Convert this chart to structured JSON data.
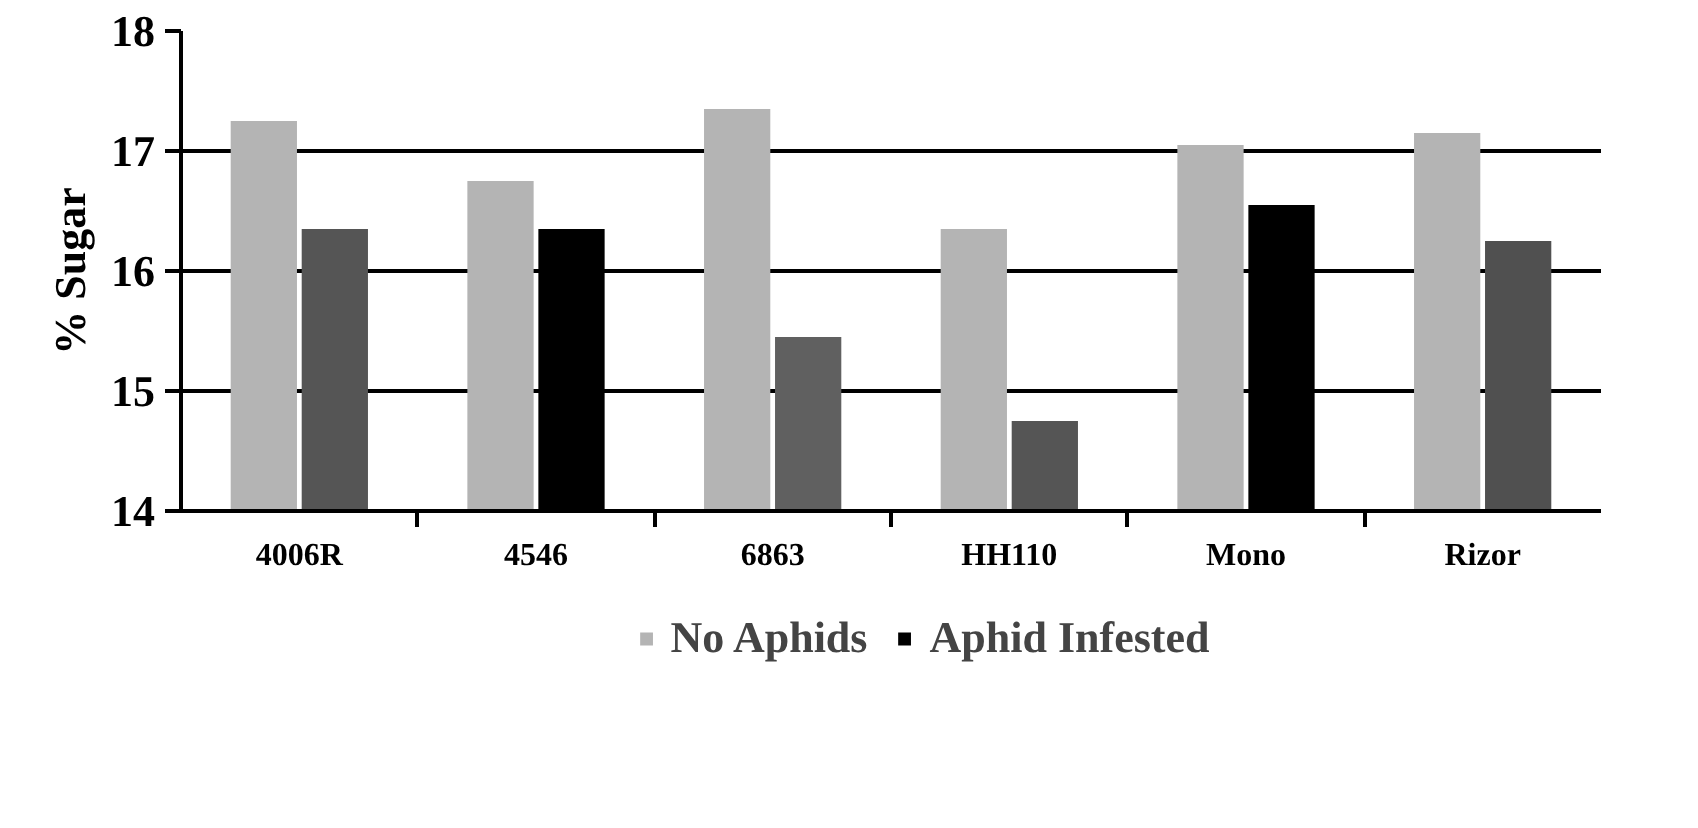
{
  "chart_data": {
    "type": "bar",
    "ylabel": "% Sugar",
    "categories": [
      "4006R",
      "4546",
      "6863",
      "HH110",
      "Mono",
      "Rizor"
    ],
    "series": [
      {
        "name": "No Aphids",
        "color": "#b4b4b4",
        "values": [
          17.25,
          16.75,
          17.35,
          16.35,
          17.05,
          17.15
        ]
      },
      {
        "name": "Aphid Infested",
        "color": "#000000",
        "colors": [
          "#555555",
          "#000000",
          "#606060",
          "#555555",
          "#000000",
          "#505050"
        ],
        "values": [
          16.35,
          16.35,
          15.45,
          14.75,
          16.55,
          16.25
        ]
      }
    ],
    "ylim": [
      14,
      18
    ],
    "yticks": [
      14,
      15,
      16,
      17,
      18
    ],
    "grid": "y",
    "legend": "bottom"
  }
}
